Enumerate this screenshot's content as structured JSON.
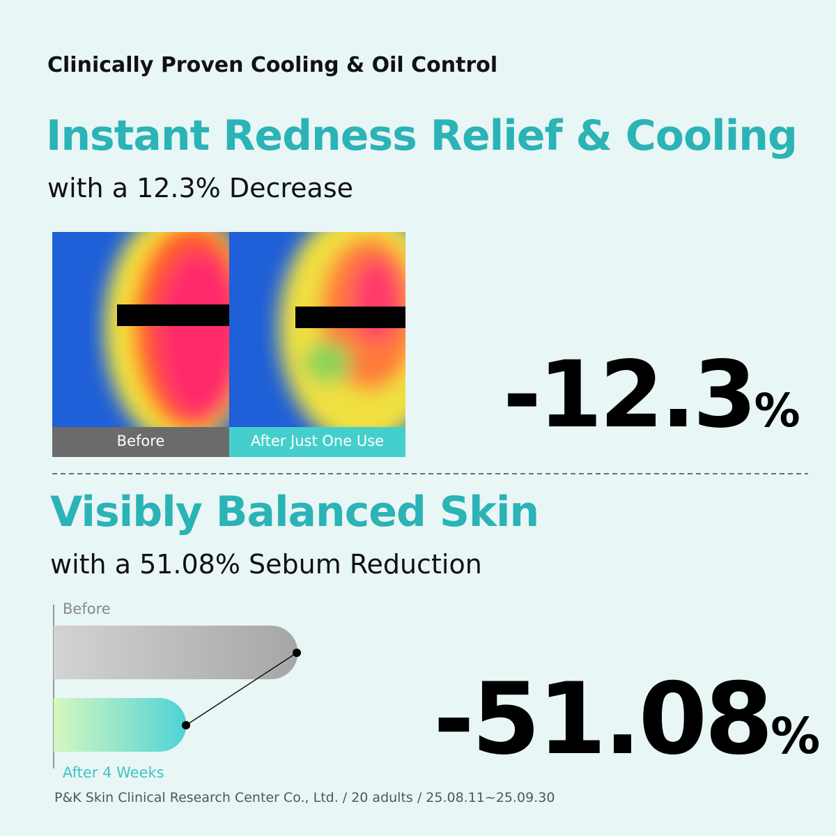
{
  "header": {
    "title": "Clinically Proven Cooling & Oil Control"
  },
  "section1": {
    "title": "Instant Redness Relief & Cooling",
    "subtitle": "with a 12.3% Decrease",
    "image_labels": [
      "Before",
      "After Just One Use"
    ],
    "stat": {
      "value": "-12.3",
      "unit": "%"
    }
  },
  "section2": {
    "title": "Visibly Balanced Skin",
    "subtitle": "with a 51.08% Sebum Reduction",
    "bar_labels": [
      "Before",
      "After 4 Weeks"
    ],
    "stat": {
      "value": "-51.08",
      "unit": "%"
    }
  },
  "footnote": "P&K Skin Clinical Research Center Co., Ltd. / 20 adults / 25.08.11~25.09.30"
}
